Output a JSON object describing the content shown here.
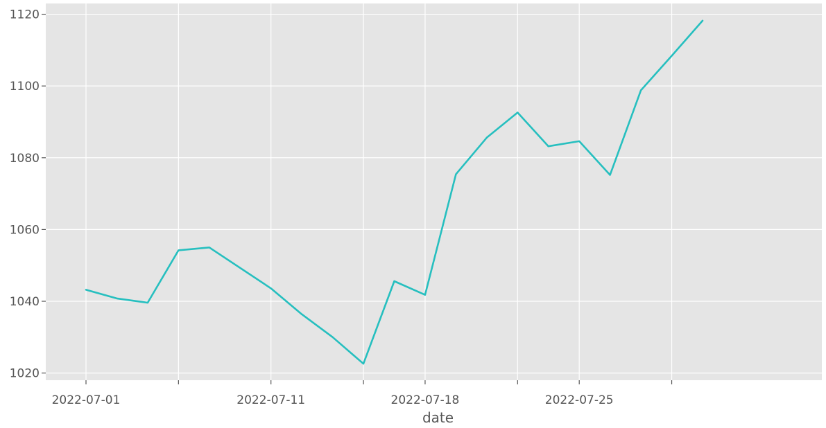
{
  "chart_data": {
    "type": "line",
    "title": "",
    "xlabel": "date",
    "ylabel": "",
    "ylim": [
      1018,
      1123
    ],
    "grid": true,
    "background_color": "#e5e5e5",
    "grid_color": "#ffffff",
    "line_color": "#26bfbf",
    "x_ticks_major": [
      {
        "date": "2022-07-01",
        "label": "2022-07-01"
      },
      {
        "date": "2022-07-11",
        "label": "2022-07-11"
      },
      {
        "date": "2022-07-18",
        "label": "2022-07-18"
      },
      {
        "date": "2022-07-25",
        "label": "2022-07-25"
      }
    ],
    "x_ticks_minor": [
      "2022-07-06",
      "2022-07-14",
      "2022-07-21",
      "2022-07-28"
    ],
    "y_ticks": [
      {
        "value": 1020,
        "label": "1020"
      },
      {
        "value": 1040,
        "label": "1040"
      },
      {
        "value": 1060,
        "label": "1060"
      },
      {
        "value": 1080,
        "label": "1080"
      },
      {
        "value": 1100,
        "label": "1100"
      },
      {
        "value": 1120,
        "label": "1120"
      }
    ],
    "series": [
      {
        "points": [
          {
            "x": "2022-07-01",
            "y": 1043.2
          },
          {
            "x": "2022-07-04",
            "y": 1040.8
          },
          {
            "x": "2022-07-05",
            "y": 1039.6
          },
          {
            "x": "2022-07-06",
            "y": 1054.2
          },
          {
            "x": "2022-07-07",
            "y": 1055.0
          },
          {
            "x": "2022-07-11",
            "y": 1043.6
          },
          {
            "x": "2022-07-12",
            "y": 1036.4
          },
          {
            "x": "2022-07-13",
            "y": 1030.0
          },
          {
            "x": "2022-07-14",
            "y": 1022.6
          },
          {
            "x": "2022-07-15",
            "y": 1045.6
          },
          {
            "x": "2022-07-18",
            "y": 1041.8
          },
          {
            "x": "2022-07-19",
            "y": 1075.4
          },
          {
            "x": "2022-07-20",
            "y": 1085.6
          },
          {
            "x": "2022-07-21",
            "y": 1092.6
          },
          {
            "x": "2022-07-22",
            "y": 1083.2
          },
          {
            "x": "2022-07-25",
            "y": 1084.6
          },
          {
            "x": "2022-07-26",
            "y": 1075.2
          },
          {
            "x": "2022-07-27",
            "y": 1098.8
          },
          {
            "x": "2022-07-28",
            "y": 1108.4
          },
          {
            "x": "2022-07-29",
            "y": 1118.2
          }
        ]
      }
    ]
  }
}
